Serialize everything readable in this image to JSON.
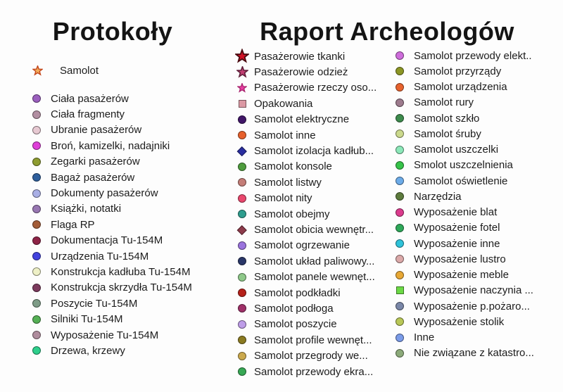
{
  "canvas_bg": "#fdfdfd",
  "text_color": "#1c1c1c",
  "headings": {
    "left": "Protokoły",
    "right": "Raport Archeologów"
  },
  "samolot_header": {
    "label": "Samolot",
    "shape": "star",
    "color": "#F2AE5C",
    "stroke": "#C2451A",
    "size": 15
  },
  "columns": [
    {
      "id": "protokoly",
      "items": [
        {
          "label": "Ciała pasażerów",
          "shape": "circle",
          "color": "#9B5FBE"
        },
        {
          "label": "Ciała fragmenty",
          "shape": "circle",
          "color": "#B28FA2"
        },
        {
          "label": "Ubranie pasażerów",
          "shape": "circle",
          "color": "#E7C9D2"
        },
        {
          "label": "Broń, kamizelki, nadajniki",
          "shape": "circle",
          "color": "#DE3FD8"
        },
        {
          "label": "Zegarki pasażerów",
          "shape": "circle",
          "color": "#8E9C30"
        },
        {
          "label": "Bagaż pasażerów",
          "shape": "circle",
          "color": "#2E5F9C"
        },
        {
          "label": "Dokumenty pasażerów",
          "shape": "circle",
          "color": "#A9AFE5"
        },
        {
          "label": "Książki, notatki",
          "shape": "circle",
          "color": "#9877B2"
        },
        {
          "label": "Flaga RP",
          "shape": "circle",
          "color": "#A25C38"
        },
        {
          "label": "Dokumentacja Tu-154M",
          "shape": "circle",
          "color": "#8E2346"
        },
        {
          "label": "Urządzenia Tu-154M",
          "shape": "circle",
          "color": "#4242DE"
        },
        {
          "label": "Konstrukcja kadłuba Tu-154M",
          "shape": "circle",
          "color": "#EEF0C6"
        },
        {
          "label": "Konstrukcja skrzydła Tu-154M",
          "shape": "circle",
          "color": "#7C3A5D"
        },
        {
          "label": "Poszycie Tu-154M",
          "shape": "circle",
          "color": "#7E9C87"
        },
        {
          "label": "Silniki Tu-154M",
          "shape": "circle",
          "color": "#55B055"
        },
        {
          "label": "Wyposażenie Tu-154M",
          "shape": "circle",
          "color": "#AF8C9D"
        },
        {
          "label": "Drzewa, krzewy",
          "shape": "circle",
          "color": "#2ECF8C"
        }
      ]
    },
    {
      "id": "raport-a",
      "items": [
        {
          "label": "Pasażerowie tkanki",
          "shape": "star",
          "color": "#D11126",
          "stroke": "#4A0A10",
          "size": 22
        },
        {
          "label": "Pasażerowie odzież",
          "shape": "star",
          "color": "#C23E72",
          "stroke": "#5E1E38",
          "size": 17
        },
        {
          "label": "Pasażerowie rzeczy oso...",
          "shape": "star",
          "color": "#E73DA1",
          "stroke": "#A8246E",
          "size": 14
        },
        {
          "label": "Opakowania",
          "shape": "square",
          "color": "#DB99A4"
        },
        {
          "label": "Samolot elektryczne",
          "shape": "circle",
          "color": "#411668"
        },
        {
          "label": "Samolot inne",
          "shape": "circle",
          "color": "#E7602C"
        },
        {
          "label": "Samolot izolacja kadłub...",
          "shape": "diamond",
          "color": "#2A2EA0"
        },
        {
          "label": "Samolot konsole",
          "shape": "circle",
          "color": "#4E9C3D"
        },
        {
          "label": "Samolot listwy",
          "shape": "circle",
          "color": "#C47D77"
        },
        {
          "label": "Samolot nity",
          "shape": "circle",
          "color": "#E9476D"
        },
        {
          "label": "Samolot obejmy",
          "shape": "circle",
          "color": "#2E9D8E"
        },
        {
          "label": "Samolot obicia wewnętr...",
          "shape": "diamond",
          "color": "#8D3B4B"
        },
        {
          "label": "Samolot ogrzewanie",
          "shape": "circle",
          "color": "#9A73DD"
        },
        {
          "label": "Samolot układ paliwowy...",
          "shape": "circle",
          "color": "#293668"
        },
        {
          "label": "Samolot panele wewnęt...",
          "shape": "circle",
          "color": "#8EC889"
        },
        {
          "label": "Samolot podkładki",
          "shape": "circle",
          "color": "#B6211A"
        },
        {
          "label": "Samolot podłoga",
          "shape": "circle",
          "color": "#9F3068"
        },
        {
          "label": "Samolot poszycie",
          "shape": "circle",
          "color": "#BE9DE8"
        },
        {
          "label": "Samolot profile wewnęt...",
          "shape": "circle",
          "color": "#8A7A21"
        },
        {
          "label": "Samolot przegrody we...",
          "shape": "circle",
          "color": "#CBA94D"
        },
        {
          "label": "Samolot przewody ekra...",
          "shape": "circle",
          "color": "#37A854"
        }
      ]
    },
    {
      "id": "raport-b",
      "items": [
        {
          "label": "Samolot przewody elekt..",
          "shape": "circle",
          "color": "#CE6DDB"
        },
        {
          "label": "Samolot przyrządy",
          "shape": "circle",
          "color": "#8C9624"
        },
        {
          "label": "Samolot urządzenia",
          "shape": "circle",
          "color": "#E7622D"
        },
        {
          "label": "Samolot rury",
          "shape": "circle",
          "color": "#9D7B8D"
        },
        {
          "label": "Samolot szkło",
          "shape": "circle",
          "color": "#3D8B4D"
        },
        {
          "label": "Samolot śruby",
          "shape": "circle",
          "color": "#CBD98C"
        },
        {
          "label": "Samolot uszczelki",
          "shape": "circle",
          "color": "#8CE8B9"
        },
        {
          "label": "Smolot uszczelnienia",
          "shape": "circle",
          "color": "#36C349"
        },
        {
          "label": "Samolot oświetlenie",
          "shape": "circle",
          "color": "#6CABE8"
        },
        {
          "label": "Narzędzia",
          "shape": "circle",
          "color": "#5D7B3D"
        },
        {
          "label": "Wyposażenie blat",
          "shape": "circle",
          "color": "#DB3B8D"
        },
        {
          "label": "Wyposażenie fotel",
          "shape": "circle",
          "color": "#2EA859"
        },
        {
          "label": "Wyposażenie inne",
          "shape": "circle",
          "color": "#2EC2D9"
        },
        {
          "label": "Wyposażenie lustro",
          "shape": "circle",
          "color": "#DBA9A9"
        },
        {
          "label": "Wyposażenie meble",
          "shape": "circle",
          "color": "#E8A835"
        },
        {
          "label": "Wyposażenie naczynia ...",
          "shape": "square",
          "color": "#6BD945"
        },
        {
          "label": "Wyposażenie p.pożaro...",
          "shape": "circle",
          "color": "#7A87A8"
        },
        {
          "label": "Wyposażenie stolik",
          "shape": "circle",
          "color": "#B8C757"
        },
        {
          "label": "Inne",
          "shape": "circle",
          "color": "#7A9BE8"
        },
        {
          "label": "Nie związane z katastro...",
          "shape": "circle",
          "color": "#8CAA7A"
        }
      ]
    }
  ]
}
